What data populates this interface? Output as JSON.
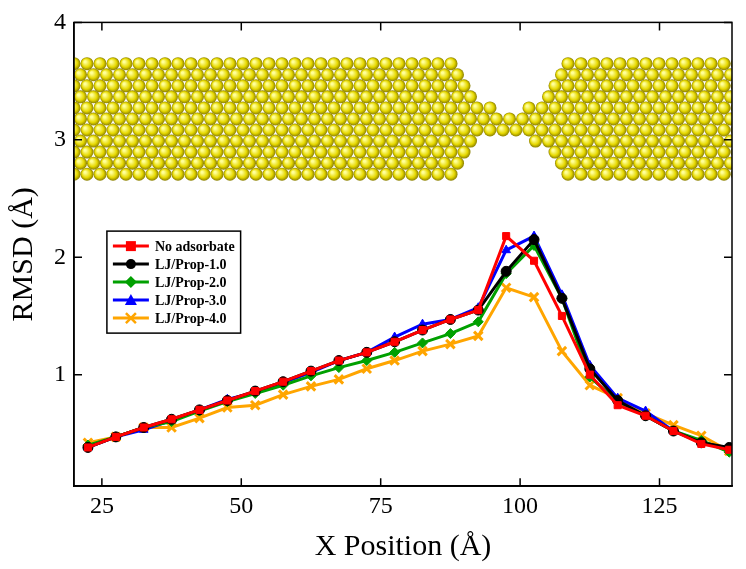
{
  "chart_data": {
    "type": "line",
    "x_label": "X Position (Å)",
    "y_label": "RMSD (Å)",
    "x": [
      22.5,
      27.5,
      32.5,
      37.5,
      42.5,
      47.5,
      52.5,
      57.5,
      62.5,
      67.5,
      72.5,
      77.5,
      82.5,
      87.5,
      92.5,
      97.5,
      102.5,
      107.5,
      112.5,
      117.5,
      122.5,
      127.5,
      132.5,
      137.5
    ],
    "series": [
      {
        "name": "No adsorbate",
        "color": "#ff0000",
        "marker": "square",
        "values": [
          0.38,
          0.47,
          0.55,
          0.62,
          0.7,
          0.78,
          0.86,
          0.94,
          1.03,
          1.12,
          1.19,
          1.28,
          1.38,
          1.47,
          1.55,
          2.18,
          1.97,
          1.5,
          1.0,
          0.74,
          0.65,
          0.52,
          0.41,
          0.36
        ]
      },
      {
        "name": "LJ/Prop-1.0",
        "color": "#000000",
        "marker": "circle",
        "values": [
          0.38,
          0.47,
          0.55,
          0.62,
          0.7,
          0.78,
          0.86,
          0.94,
          1.03,
          1.12,
          1.19,
          1.28,
          1.38,
          1.47,
          1.55,
          1.88,
          2.15,
          1.65,
          1.05,
          0.78,
          0.65,
          0.52,
          0.42,
          0.38
        ]
      },
      {
        "name": "LJ/Prop-2.0",
        "color": "#00a000",
        "marker": "diamond",
        "values": [
          0.4,
          0.47,
          0.55,
          0.6,
          0.69,
          0.77,
          0.84,
          0.91,
          0.99,
          1.06,
          1.12,
          1.19,
          1.27,
          1.35,
          1.45,
          1.86,
          2.1,
          1.65,
          0.98,
          0.77,
          0.65,
          0.52,
          0.44,
          0.34
        ]
      },
      {
        "name": "LJ/Prop-3.0",
        "color": "#0000ff",
        "marker": "triangle",
        "values": [
          0.38,
          0.47,
          0.53,
          0.61,
          0.7,
          0.79,
          0.85,
          0.93,
          1.02,
          1.12,
          1.19,
          1.32,
          1.43,
          1.47,
          1.57,
          2.06,
          2.18,
          1.68,
          1.08,
          0.8,
          0.69,
          0.52,
          0.43,
          0.36
        ]
      },
      {
        "name": "LJ/Prop-4.0",
        "color": "#ffa500",
        "marker": "x",
        "values": [
          0.42,
          0.47,
          0.55,
          0.55,
          0.63,
          0.72,
          0.74,
          0.83,
          0.9,
          0.96,
          1.05,
          1.12,
          1.2,
          1.26,
          1.33,
          1.74,
          1.66,
          1.2,
          0.91,
          0.8,
          0.67,
          0.57,
          0.48,
          0.35
        ]
      }
    ],
    "xlim": [
      20,
      138
    ],
    "xticks": [
      25,
      50,
      75,
      100,
      125
    ],
    "ylim": [
      0.05,
      4
    ],
    "yticks": [
      1,
      2,
      3,
      4
    ],
    "grid": false,
    "legend": "left"
  }
}
